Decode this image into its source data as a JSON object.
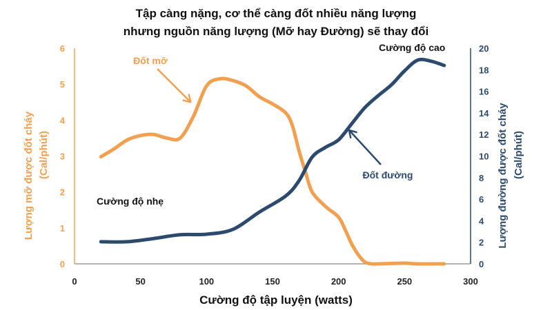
{
  "chart_data": {
    "type": "line",
    "title_lines": [
      "Tập càng nặng, cơ thể càng đốt nhiều năng lượng",
      "nhưng nguồn năng lượng (Mỡ hay Đường) sẽ thay đổi"
    ],
    "xlabel": "Cường độ tập luyện (watts)",
    "ylabel_left_lines": [
      "Lượng mỡ được đốt cháy",
      "(Cal/phút)"
    ],
    "ylabel_right_lines": [
      "Lượng đường được đốt cháy",
      "(Cal/phút)"
    ],
    "xlim": [
      0,
      300
    ],
    "ylim_left": [
      0,
      6
    ],
    "ylim_right": [
      0,
      20
    ],
    "x_ticks": [
      0,
      50,
      100,
      150,
      200,
      250,
      300
    ],
    "y_left_ticks": [
      0,
      1,
      2,
      3,
      4,
      5,
      6
    ],
    "y_right_ticks": [
      0,
      2,
      4,
      6,
      8,
      10,
      12,
      14,
      16,
      18,
      20
    ],
    "grid": false,
    "series": [
      {
        "name": "Đốt mỡ",
        "axis": "left",
        "color": "#f0a050",
        "points": [
          [
            20,
            2.98
          ],
          [
            30,
            3.2
          ],
          [
            40,
            3.45
          ],
          [
            50,
            3.57
          ],
          [
            60,
            3.6
          ],
          [
            70,
            3.5
          ],
          [
            80,
            3.5
          ],
          [
            90,
            4.1
          ],
          [
            100,
            4.95
          ],
          [
            110,
            5.15
          ],
          [
            120,
            5.1
          ],
          [
            130,
            4.95
          ],
          [
            140,
            4.65
          ],
          [
            150,
            4.45
          ],
          [
            160,
            4.2
          ],
          [
            165,
            3.85
          ],
          [
            170,
            3.15
          ],
          [
            175,
            2.55
          ],
          [
            180,
            2.0
          ],
          [
            190,
            1.6
          ],
          [
            200,
            1.3
          ],
          [
            205,
            0.95
          ],
          [
            210,
            0.55
          ],
          [
            215,
            0.25
          ],
          [
            220,
            0.05
          ],
          [
            225,
            0.0
          ],
          [
            230,
            0.0
          ],
          [
            250,
            0.02
          ],
          [
            260,
            0.0
          ],
          [
            280,
            0.0
          ]
        ]
      },
      {
        "name": "Đốt đường",
        "axis": "right",
        "color": "#2c4a6e",
        "points": [
          [
            20,
            2.05
          ],
          [
            40,
            2.05
          ],
          [
            60,
            2.35
          ],
          [
            80,
            2.7
          ],
          [
            100,
            2.75
          ],
          [
            120,
            3.2
          ],
          [
            140,
            4.8
          ],
          [
            160,
            6.3
          ],
          [
            170,
            7.7
          ],
          [
            180,
            9.9
          ],
          [
            190,
            10.8
          ],
          [
            200,
            11.5
          ],
          [
            210,
            13.0
          ],
          [
            220,
            14.5
          ],
          [
            230,
            15.6
          ],
          [
            240,
            16.6
          ],
          [
            250,
            17.9
          ],
          [
            260,
            18.9
          ],
          [
            270,
            18.8
          ],
          [
            280,
            18.4
          ]
        ]
      }
    ],
    "annotations": [
      {
        "text": "Đốt mỡ",
        "color": "#f0a050",
        "arrow_to": [
          88,
          4.5
        ]
      },
      {
        "text": "Đốt đường",
        "color": "#2c4a6e",
        "arrow_to": [
          208,
          12.4
        ]
      },
      {
        "text": "Cường độ nhẹ",
        "color": "#111111"
      },
      {
        "text": "Cường độ cao",
        "color": "#111111"
      }
    ]
  }
}
